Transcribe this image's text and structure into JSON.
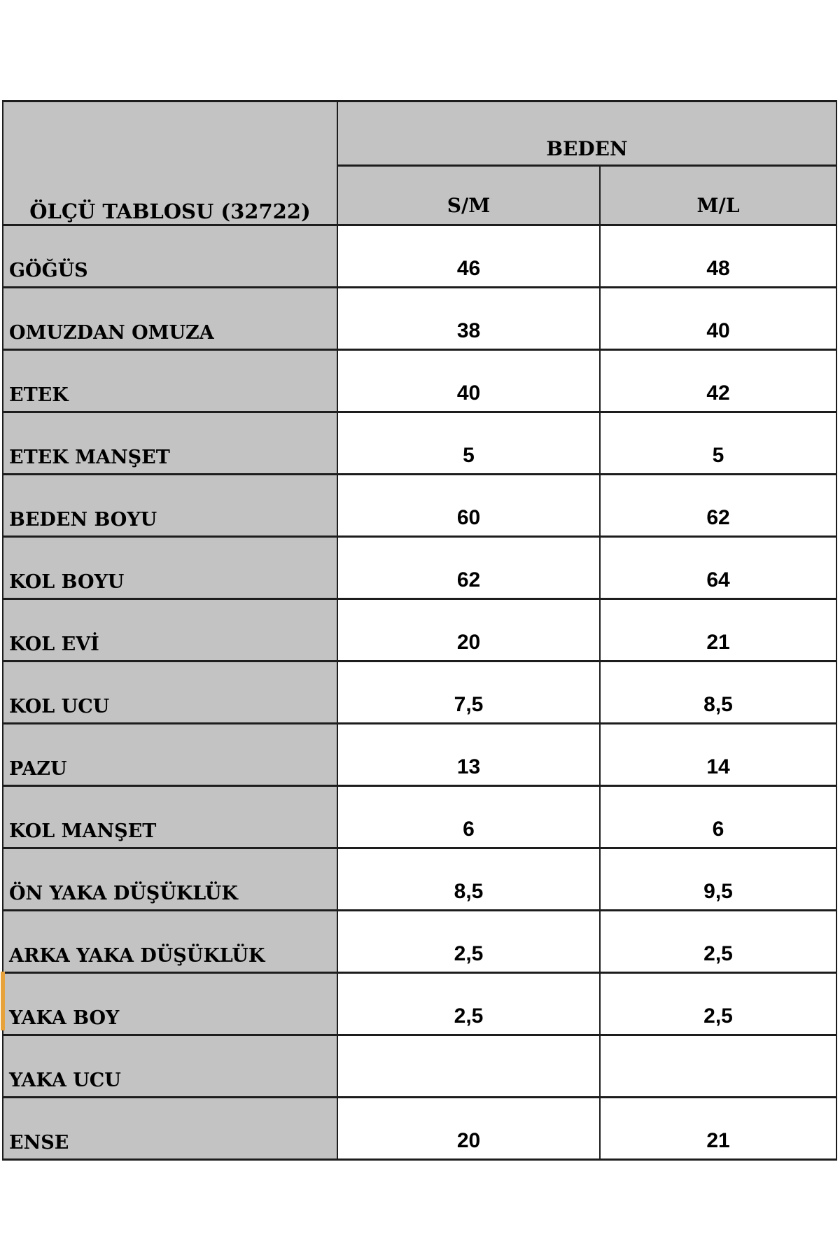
{
  "colors": {
    "header_fill": "#c3c3c3",
    "cell_fill": "#ffffff",
    "border": "#1d1d1d",
    "text": "#000000",
    "row_marker": "#e8a23c",
    "page_background": "#ffffff"
  },
  "table": {
    "title": "ÖLÇÜ TABLOSU (32722)",
    "size_group_header": "BEDEN",
    "size_columns": [
      "S/M",
      "M/L"
    ],
    "rows": [
      {
        "label": "GÖĞÜS",
        "sm": "46",
        "ml": "48"
      },
      {
        "label": "OMUZDAN OMUZA",
        "sm": "38",
        "ml": "40"
      },
      {
        "label": "ETEK",
        "sm": "40",
        "ml": "42"
      },
      {
        "label": "ETEK MANŞET",
        "sm": "5",
        "ml": "5"
      },
      {
        "label": "BEDEN BOYU",
        "sm": "60",
        "ml": "62"
      },
      {
        "label": "KOL BOYU",
        "sm": "62",
        "ml": "64"
      },
      {
        "label": "KOL EVİ",
        "sm": "20",
        "ml": "21"
      },
      {
        "label": "KOL UCU",
        "sm": "7,5",
        "ml": "8,5"
      },
      {
        "label": "PAZU",
        "sm": "13",
        "ml": "14"
      },
      {
        "label": "KOL MANŞET",
        "sm": "6",
        "ml": "6"
      },
      {
        "label": "ÖN YAKA DÜŞÜKLÜK",
        "sm": "8,5",
        "ml": "9,5"
      },
      {
        "label": "ARKA YAKA DÜŞÜKLÜK",
        "sm": "2,5",
        "ml": "2,5"
      },
      {
        "label": "YAKA BOY",
        "sm": "2,5",
        "ml": "2,5"
      },
      {
        "label": "YAKA UCU",
        "sm": "",
        "ml": ""
      },
      {
        "label": "ENSE",
        "sm": "20",
        "ml": "21"
      }
    ]
  }
}
